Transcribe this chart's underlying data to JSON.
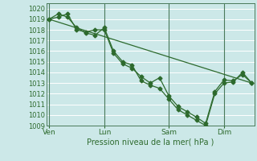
{
  "xlabel": "Pression niveau de la mer( hPa )",
  "bg_color": "#cce8e8",
  "grid_color": "#b0d8d8",
  "line_color": "#2d6a2d",
  "ylim": [
    1009,
    1020.5
  ],
  "yticks": [
    1009,
    1010,
    1011,
    1012,
    1013,
    1014,
    1015,
    1016,
    1017,
    1018,
    1019,
    1020
  ],
  "day_labels": [
    "Ven",
    "Lun",
    "Sam",
    "Dim"
  ],
  "day_positions": [
    0,
    6,
    13,
    19
  ],
  "vline_positions": [
    0,
    6,
    13,
    19
  ],
  "series1_x": [
    0,
    1,
    2,
    3,
    4,
    5,
    6,
    7,
    8,
    9,
    10,
    11,
    12,
    13,
    14,
    15,
    16,
    17,
    18,
    19,
    20,
    21,
    22
  ],
  "series1_y": [
    1019.0,
    1019.2,
    1019.5,
    1018.0,
    1017.8,
    1018.0,
    1018.0,
    1015.8,
    1014.8,
    1014.4,
    1013.6,
    1013.0,
    1013.5,
    1011.8,
    1010.8,
    1010.3,
    1009.8,
    1009.2,
    1012.2,
    1013.3,
    1013.2,
    1013.8,
    1013.0
  ],
  "series2_x": [
    0,
    1,
    2,
    3,
    4,
    5,
    6,
    7,
    8,
    9,
    10,
    11,
    12,
    13,
    14,
    15,
    16,
    17,
    18,
    19,
    20,
    21,
    22
  ],
  "series2_y": [
    1019.0,
    1019.5,
    1019.2,
    1018.2,
    1017.7,
    1017.5,
    1018.2,
    1016.0,
    1015.0,
    1014.7,
    1013.2,
    1012.8,
    1012.5,
    1011.5,
    1010.5,
    1010.0,
    1009.5,
    1009.0,
    1012.0,
    1013.0,
    1013.1,
    1014.0,
    1013.0
  ],
  "trend_x": [
    0,
    22
  ],
  "trend_y": [
    1019.0,
    1013.0
  ],
  "marker_size": 2.5,
  "linewidth": 0.9,
  "xlim": [
    -0.3,
    22.3
  ]
}
